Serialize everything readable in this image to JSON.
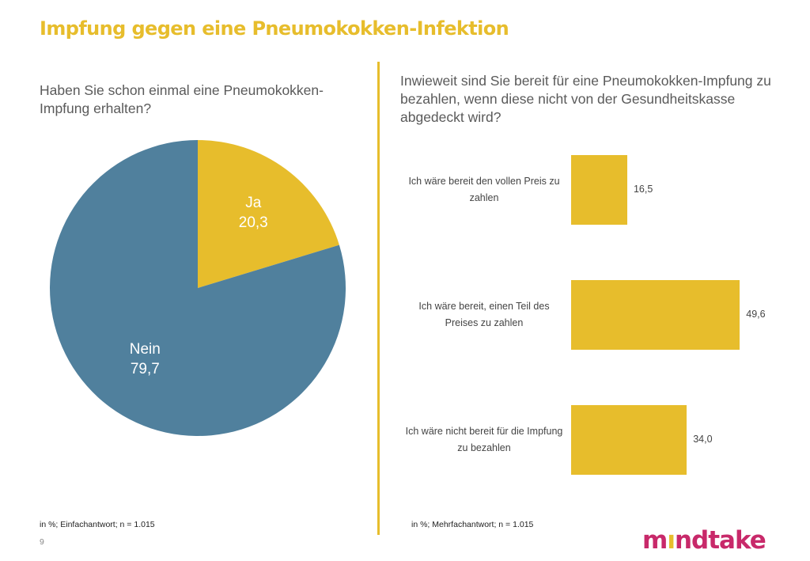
{
  "title": "Impfung gegen eine Pneumokokken-Infektion",
  "colors": {
    "accent": "#E7BD2C",
    "pie_ja": "#E7BD2C",
    "pie_nein": "#50809D",
    "bars": "#E7BD2C",
    "logo": "#C8296A"
  },
  "left": {
    "question": "Haben Sie schon einmal eine Pneumokokken-Impfung erhalten?",
    "note": "in %; Einfachantwort;  n = 1.015"
  },
  "right": {
    "question": "Inwieweit sind Sie bereit für eine Pneumokokken-Impfung zu bezahlen, wenn diese nicht von der Gesundheitskasse abgedeckt wird?",
    "note": "in %; Mehrfachantwort;  n = 1.015"
  },
  "page_number": "9",
  "logo": {
    "pre": "m",
    "dot_letter": "ı",
    "post": "ndtake"
  },
  "chart_data": [
    {
      "type": "pie",
      "categories": [
        "Ja",
        "Nein"
      ],
      "values": [
        20.3,
        79.7
      ],
      "value_labels": [
        "20,3",
        "79,7"
      ]
    },
    {
      "type": "bar",
      "orientation": "horizontal",
      "categories": [
        "Ich wäre bereit den vollen Preis zu zahlen",
        "Ich wäre bereit, einen Teil des Preises zu zahlen",
        "Ich wäre nicht bereit für die Impfung zu bezahlen"
      ],
      "values": [
        16.5,
        49.6,
        34.0
      ],
      "value_labels": [
        "16,5",
        "49,6",
        "34,0"
      ]
    }
  ]
}
